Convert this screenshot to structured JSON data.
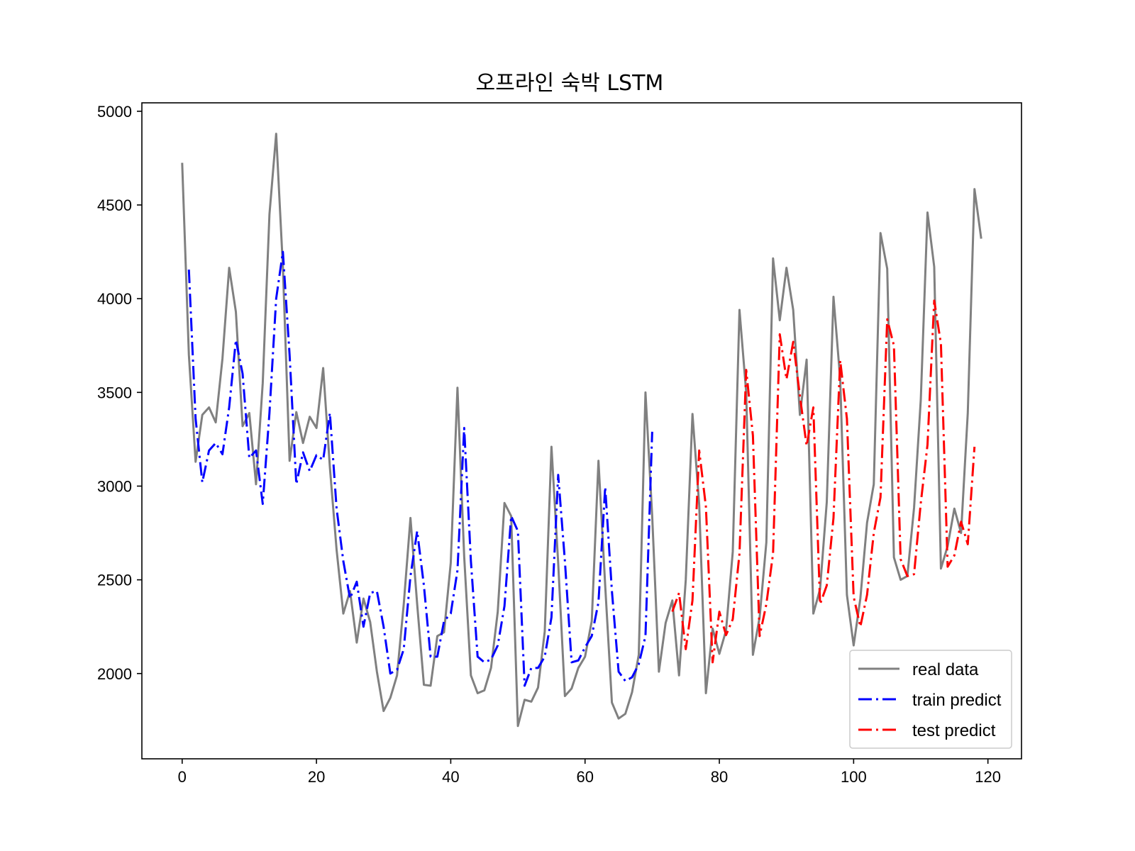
{
  "chart_data": {
    "type": "line",
    "title": "오프라인 숙박 LSTM",
    "xlabel": "",
    "ylabel": "",
    "xlim": [
      -6,
      125
    ],
    "ylim": [
      1545,
      5045
    ],
    "xticks": [
      0,
      20,
      40,
      60,
      80,
      100,
      120
    ],
    "yticks": [
      2000,
      2500,
      3000,
      3500,
      4000,
      4500,
      5000
    ],
    "grid": false,
    "legend_position": "lower-right",
    "series": [
      {
        "name": "real data",
        "color": "#808080",
        "style": "solid",
        "x_start": 0,
        "values": [
          4725,
          3700,
          3130,
          3380,
          3420,
          3340,
          3680,
          4165,
          3930,
          3320,
          3390,
          3010,
          3550,
          4450,
          4880,
          4170,
          3135,
          3395,
          3230,
          3370,
          3310,
          3630,
          3100,
          2660,
          2320,
          2440,
          2165,
          2400,
          2275,
          2010,
          1800,
          1870,
          1990,
          2370,
          2830,
          2370,
          1940,
          1935,
          2200,
          2220,
          2590,
          3525,
          2625,
          1990,
          1895,
          1910,
          2030,
          2330,
          2910,
          2840,
          1720,
          1860,
          1850,
          1925,
          2225,
          3210,
          2590,
          1880,
          1920,
          2030,
          2090,
          2280,
          3135,
          2470,
          1845,
          1760,
          1785,
          1900,
          2100,
          3500,
          2840,
          2010,
          2270,
          2390,
          1990,
          2500,
          3385,
          2900,
          1895,
          2240,
          2105,
          2230,
          2650,
          3940,
          3500,
          2100,
          2300,
          2700,
          4215,
          3885,
          4165,
          3940,
          3380,
          3675,
          2320,
          2450,
          2915,
          4010,
          3570,
          2420,
          2150,
          2400,
          2805,
          3010,
          4350,
          4160,
          2620,
          2500,
          2520,
          2885,
          3460,
          4460,
          4170,
          2560,
          2680,
          2880,
          2750,
          3390,
          4585,
          4320
        ]
      },
      {
        "name": "train predict",
        "color": "#0000ff",
        "style": "dashdot",
        "x_start": 1,
        "values": [
          4155,
          3360,
          3020,
          3190,
          3230,
          3170,
          3420,
          3780,
          3600,
          3150,
          3190,
          2905,
          3390,
          4000,
          4250,
          3700,
          3010,
          3180,
          3080,
          3165,
          3140,
          3390,
          2880,
          2600,
          2400,
          2490,
          2250,
          2430,
          2440,
          2250,
          2000,
          2020,
          2130,
          2520,
          2760,
          2470,
          2090,
          2090,
          2280,
          2320,
          2550,
          3310,
          2600,
          2090,
          2060,
          2075,
          2150,
          2360,
          2840,
          2760,
          1935,
          2030,
          2030,
          2090,
          2300,
          3060,
          2600,
          2060,
          2070,
          2140,
          2200,
          2380,
          2995,
          2440,
          2010,
          1960,
          1980,
          2050,
          2200,
          3290
        ]
      },
      {
        "name": "test predict",
        "color": "#ff0000",
        "style": "dashdot",
        "x_start": 73,
        "values": [
          2330,
          2430,
          2130,
          2390,
          3190,
          2890,
          2060,
          2330,
          2205,
          2290,
          2640,
          3620,
          3270,
          2200,
          2370,
          2640,
          3810,
          3570,
          3770,
          3480,
          3215,
          3420,
          2370,
          2470,
          2830,
          3670,
          3360,
          2410,
          2250,
          2420,
          2750,
          2940,
          3890,
          3750,
          2610,
          2520,
          2530,
          2910,
          3220,
          3990,
          3760,
          2570,
          2630,
          2810,
          2690,
          3210
        ]
      }
    ]
  }
}
